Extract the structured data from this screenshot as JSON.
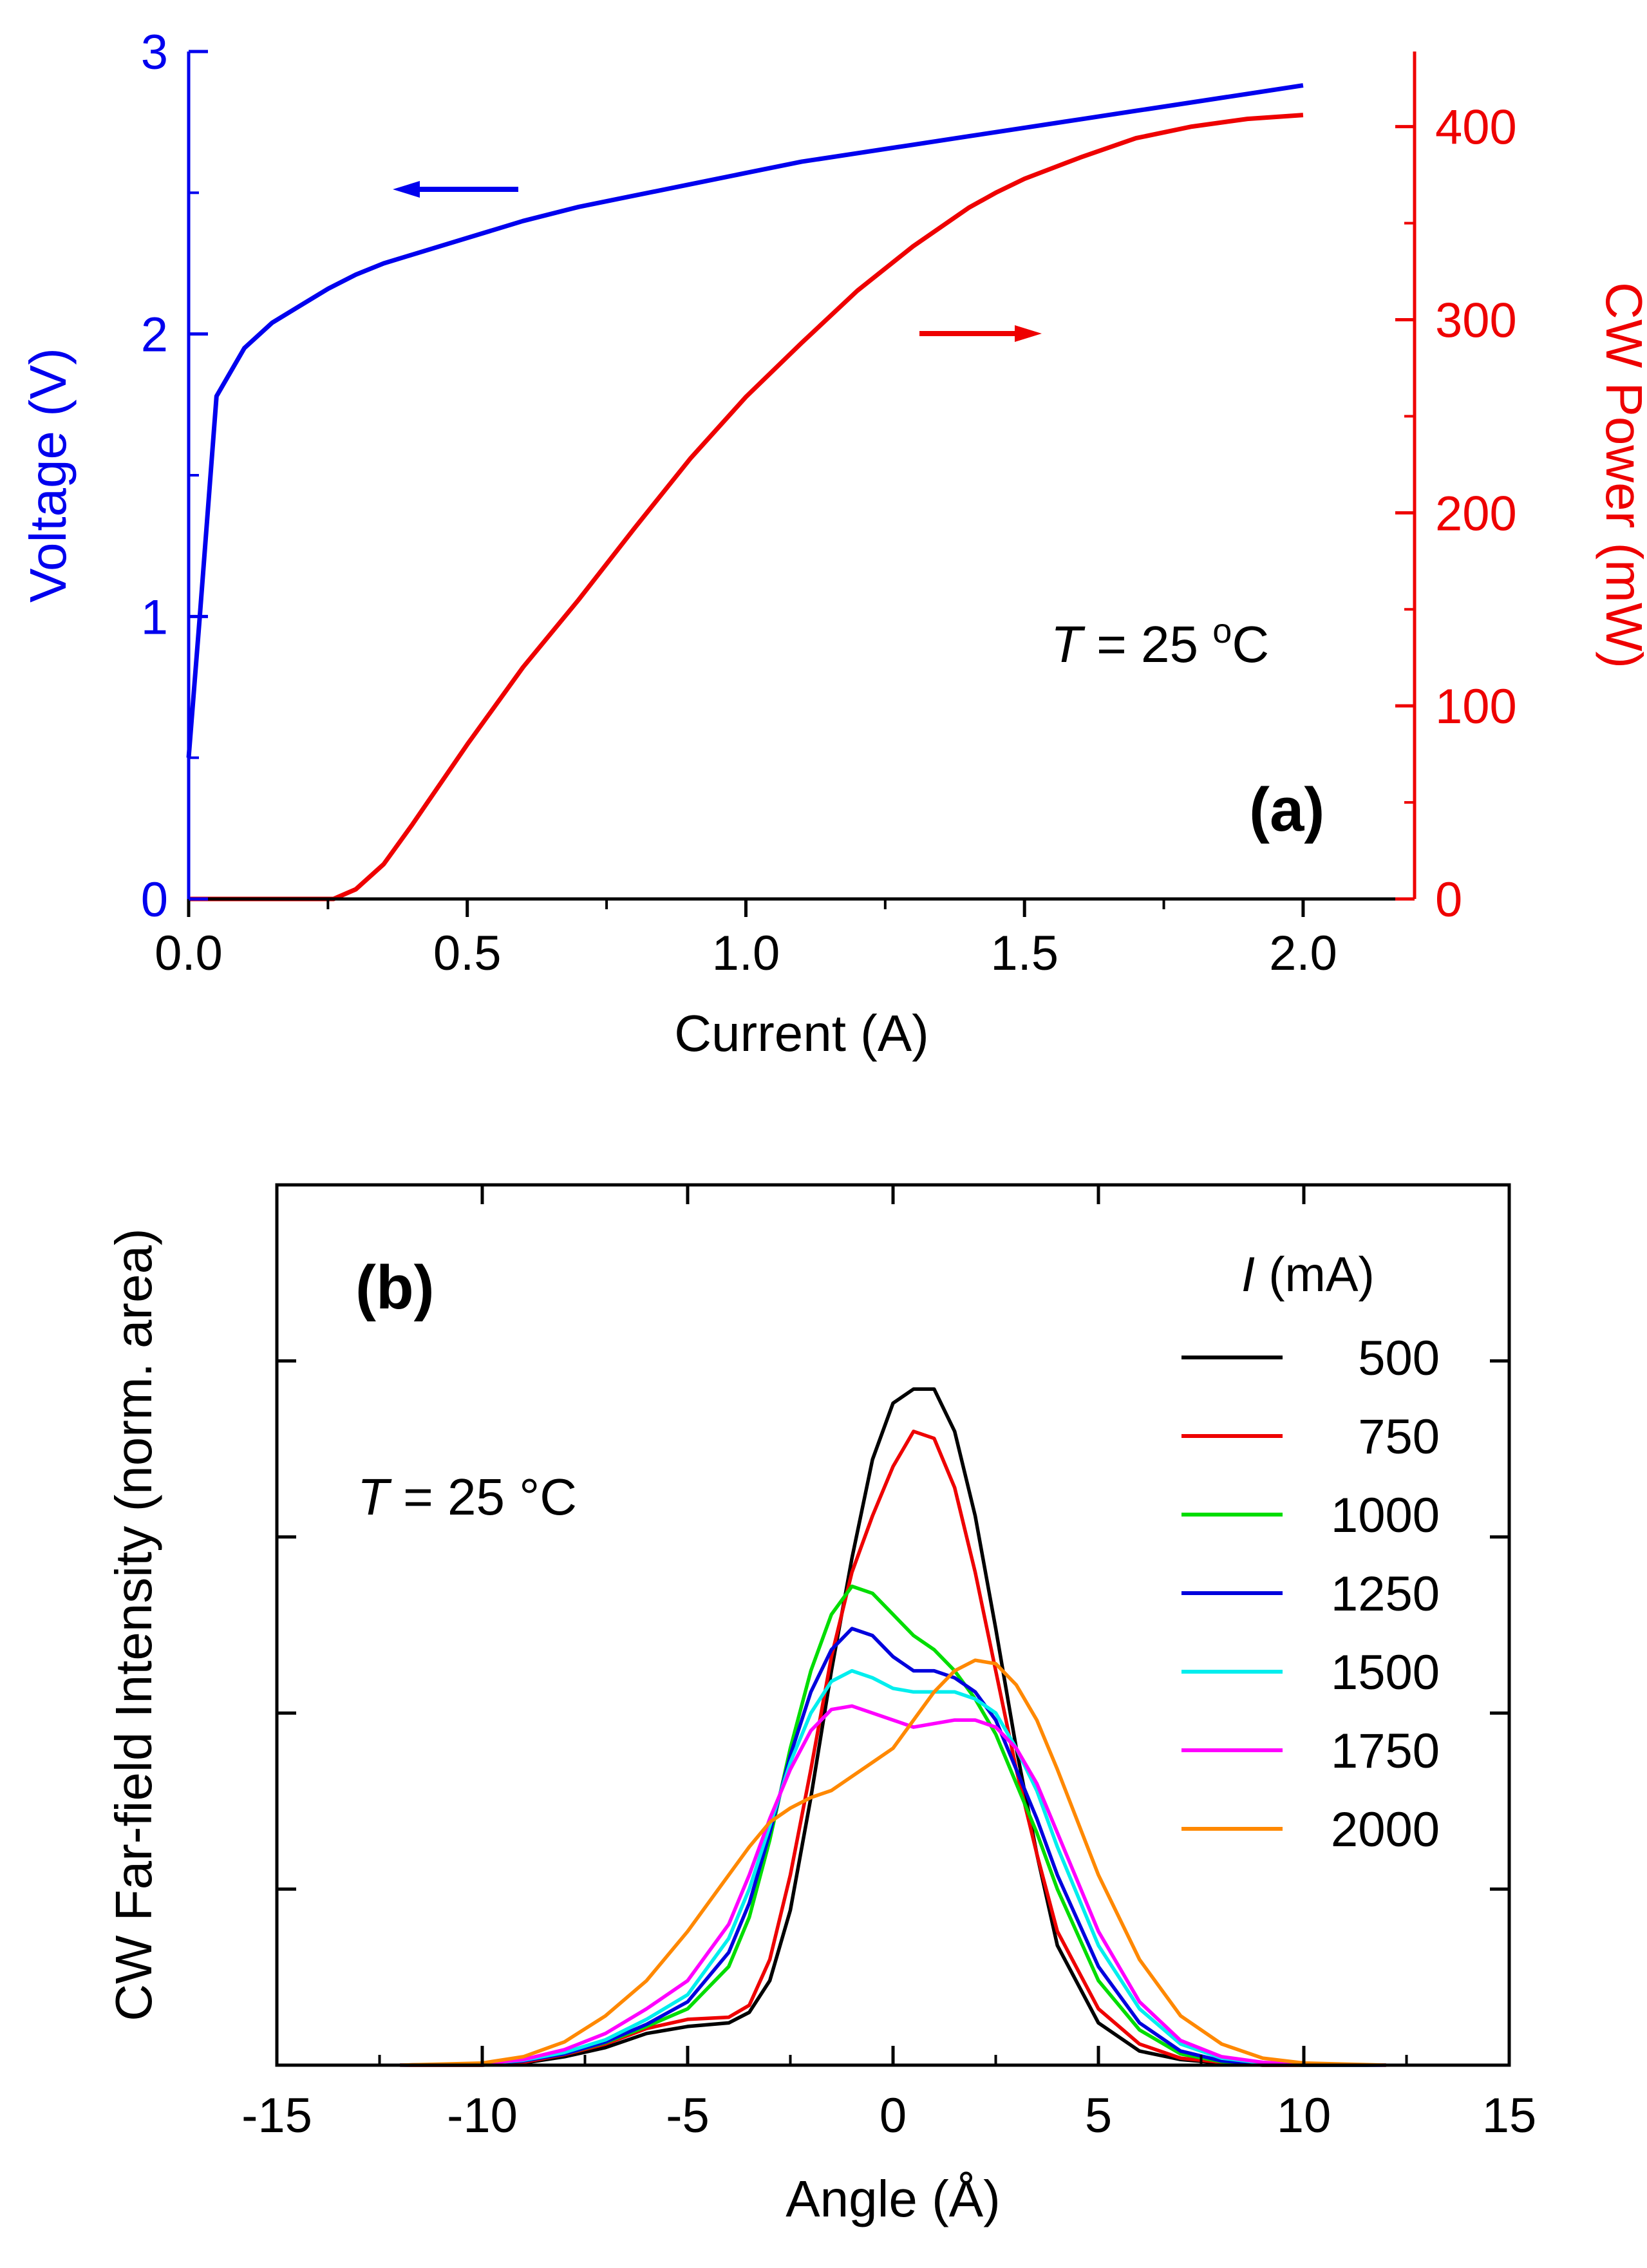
{
  "chart_data": [
    {
      "panel": "(a)",
      "type": "line",
      "annotation": {
        "symbol": "T",
        "text": " = 25 ",
        "sup": "o",
        "unit": "C"
      },
      "xlabel": "Current (A)",
      "ylabel_left": "Voltage (V)",
      "ylabel_right": "CW Power (mW)",
      "xlim": [
        0,
        2.2
      ],
      "ylim_left": [
        0,
        3
      ],
      "ylim_right": [
        0,
        438.9
      ],
      "xticks": [
        "0.0",
        "0.5",
        "1.0",
        "1.5",
        "2.0"
      ],
      "yticks_left": [
        "0",
        "1",
        "2",
        "3"
      ],
      "yticks_right": [
        "0",
        "100",
        "200",
        "300",
        "400"
      ],
      "colors": {
        "voltage": "#0000ee",
        "power": "#ee0000"
      },
      "series": [
        {
          "axis": "left",
          "x": [
            0,
            0.02,
            0.05,
            0.1,
            0.15,
            0.2,
            0.25,
            0.3,
            0.35,
            0.4,
            0.5,
            0.6,
            0.7,
            0.8,
            0.9,
            1.0,
            1.1,
            1.2,
            1.3,
            1.4,
            1.5,
            1.6,
            1.7,
            1.8,
            1.9,
            2.0
          ],
          "y": [
            0.5,
            1.0,
            1.78,
            1.95,
            2.04,
            2.1,
            2.16,
            2.21,
            2.25,
            2.28,
            2.34,
            2.4,
            2.45,
            2.49,
            2.53,
            2.57,
            2.61,
            2.64,
            2.67,
            2.7,
            2.73,
            2.76,
            2.79,
            2.82,
            2.85,
            2.88
          ]
        },
        {
          "axis": "right",
          "x": [
            0,
            0.1,
            0.2,
            0.26,
            0.3,
            0.35,
            0.4,
            0.5,
            0.6,
            0.7,
            0.8,
            0.9,
            1.0,
            1.1,
            1.2,
            1.3,
            1.4,
            1.45,
            1.5,
            1.6,
            1.7,
            1.8,
            1.9,
            2.0
          ],
          "y": [
            0,
            0,
            0,
            0,
            5,
            18,
            38,
            80,
            120,
            155,
            192,
            228,
            260,
            288,
            315,
            338,
            358,
            366,
            373,
            384,
            394,
            400,
            404,
            406
          ]
        }
      ]
    },
    {
      "panel": "(b)",
      "type": "line",
      "annotation": {
        "symbol": "T",
        "text": " = 25 °C"
      },
      "xlabel": "Angle (Å)",
      "ylabel": "CW Far-field Intensity (norm. area)",
      "xlim": [
        -15,
        15
      ],
      "ylim": [
        0,
        1.25
      ],
      "xticks": [
        "-15",
        "-10",
        "-5",
        "0",
        "5",
        "10",
        "15"
      ],
      "yticks": [
        0.25,
        0.5,
        0.75,
        1.0
      ],
      "legend_title": {
        "symbol": "I",
        "text": " (mA)"
      },
      "legend_position": "top-right",
      "x": [
        -12,
        -10,
        -9,
        -8,
        -7,
        -6,
        -5,
        -4,
        -3.5,
        -3,
        -2.5,
        -2,
        -1.5,
        -1,
        -0.5,
        0,
        0.5,
        1,
        1.5,
        2,
        2.5,
        3,
        3.5,
        4,
        5,
        6,
        7,
        8,
        9,
        10,
        12
      ],
      "series": [
        {
          "name": "500",
          "color": "#000000",
          "y": [
            0,
            0,
            0.003,
            0.012,
            0.025,
            0.045,
            0.055,
            0.06,
            0.075,
            0.12,
            0.22,
            0.38,
            0.56,
            0.72,
            0.86,
            0.94,
            0.96,
            0.96,
            0.9,
            0.78,
            0.62,
            0.45,
            0.3,
            0.17,
            0.06,
            0.02,
            0.008,
            0.003,
            0,
            0,
            0
          ]
        },
        {
          "name": "750",
          "color": "#ee0000",
          "y": [
            0,
            0,
            0.004,
            0.015,
            0.03,
            0.052,
            0.065,
            0.068,
            0.085,
            0.15,
            0.27,
            0.42,
            0.58,
            0.7,
            0.78,
            0.85,
            0.9,
            0.89,
            0.82,
            0.7,
            0.56,
            0.42,
            0.3,
            0.19,
            0.08,
            0.03,
            0.01,
            0.004,
            0,
            0,
            0
          ]
        },
        {
          "name": "1000",
          "color": "#00dd00",
          "y": [
            0,
            0.002,
            0.006,
            0.016,
            0.032,
            0.055,
            0.08,
            0.14,
            0.21,
            0.32,
            0.45,
            0.56,
            0.64,
            0.68,
            0.67,
            0.64,
            0.61,
            0.59,
            0.56,
            0.52,
            0.47,
            0.4,
            0.33,
            0.25,
            0.12,
            0.05,
            0.016,
            0.005,
            0.001,
            0,
            0
          ]
        },
        {
          "name": "1250",
          "color": "#0000dd",
          "y": [
            0,
            0.002,
            0.006,
            0.016,
            0.033,
            0.058,
            0.09,
            0.16,
            0.23,
            0.33,
            0.44,
            0.53,
            0.59,
            0.62,
            0.61,
            0.58,
            0.56,
            0.56,
            0.55,
            0.53,
            0.49,
            0.42,
            0.35,
            0.27,
            0.14,
            0.06,
            0.02,
            0.006,
            0.002,
            0,
            0
          ]
        },
        {
          "name": "1500",
          "color": "#00eeee",
          "y": [
            0,
            0.002,
            0.007,
            0.018,
            0.036,
            0.065,
            0.1,
            0.18,
            0.25,
            0.34,
            0.43,
            0.5,
            0.545,
            0.56,
            0.55,
            0.535,
            0.53,
            0.53,
            0.53,
            0.52,
            0.5,
            0.45,
            0.39,
            0.31,
            0.17,
            0.08,
            0.03,
            0.01,
            0.003,
            0.001,
            0
          ]
        },
        {
          "name": "1750",
          "color": "#ff00ff",
          "y": [
            0,
            0.002,
            0.008,
            0.022,
            0.045,
            0.08,
            0.12,
            0.2,
            0.27,
            0.35,
            0.42,
            0.475,
            0.505,
            0.51,
            0.5,
            0.49,
            0.48,
            0.485,
            0.49,
            0.49,
            0.48,
            0.45,
            0.4,
            0.33,
            0.19,
            0.09,
            0.035,
            0.012,
            0.004,
            0.001,
            0
          ]
        },
        {
          "name": "2000",
          "color": "#ff8800",
          "y": [
            0,
            0.003,
            0.012,
            0.033,
            0.07,
            0.12,
            0.19,
            0.27,
            0.31,
            0.345,
            0.365,
            0.38,
            0.39,
            0.41,
            0.43,
            0.45,
            0.49,
            0.53,
            0.56,
            0.575,
            0.57,
            0.54,
            0.49,
            0.42,
            0.27,
            0.15,
            0.07,
            0.03,
            0.01,
            0.003,
            0
          ]
        }
      ]
    }
  ]
}
